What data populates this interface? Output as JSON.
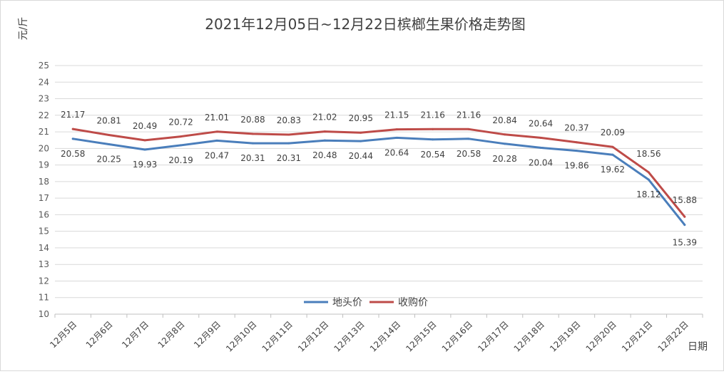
{
  "chart_data": {
    "type": "line",
    "title": "2021年12月05日~12月22日槟榔生果价格走势图",
    "ylabel": "元/斤",
    "xlabel": "日期",
    "categories": [
      "12月5日",
      "12月6日",
      "12月7日",
      "12月8日",
      "12月9日",
      "12月10日",
      "12月11日",
      "12月12日",
      "12月13日",
      "12月14日",
      "12月15日",
      "12月16日",
      "12月17日",
      "12月18日",
      "12月19日",
      "12月20日",
      "12月21日",
      "12月22日"
    ],
    "ylim": [
      10,
      25
    ],
    "yticks": [
      10,
      11,
      12,
      13,
      14,
      15,
      16,
      17,
      18,
      19,
      20,
      21,
      22,
      23,
      24,
      25
    ],
    "grid": true,
    "legend_position": "bottom-center",
    "series": [
      {
        "name": "地头价",
        "color": "#4a7ebb",
        "values": [
          20.58,
          20.25,
          19.93,
          20.19,
          20.47,
          20.31,
          20.31,
          20.48,
          20.44,
          20.64,
          20.54,
          20.58,
          20.28,
          20.04,
          19.86,
          19.62,
          18.12,
          15.39
        ],
        "labels": [
          "20.58",
          "20.25",
          "19.93",
          "20.19",
          "20.47",
          "20.31",
          "20.31",
          "20.48",
          "20.44",
          "20.64",
          "20.54",
          "20.58",
          "20.28",
          "20.04",
          "19.86",
          "19.62",
          "18.12",
          "15.39"
        ]
      },
      {
        "name": "收购价",
        "color": "#be4b48",
        "values": [
          21.17,
          20.81,
          20.49,
          20.72,
          21.01,
          20.88,
          20.83,
          21.02,
          20.95,
          21.15,
          21.16,
          21.16,
          20.84,
          20.64,
          20.37,
          20.09,
          18.56,
          15.88
        ],
        "labels": [
          "21.17",
          "20.81",
          "20.49",
          "20.72",
          "21.01",
          "20.88",
          "20.83",
          "21.02",
          "20.95",
          "21.15",
          "21.16",
          "21.16",
          "20.84",
          "20.64",
          "20.37",
          "20.09",
          "18.56",
          "15.88"
        ]
      }
    ]
  }
}
